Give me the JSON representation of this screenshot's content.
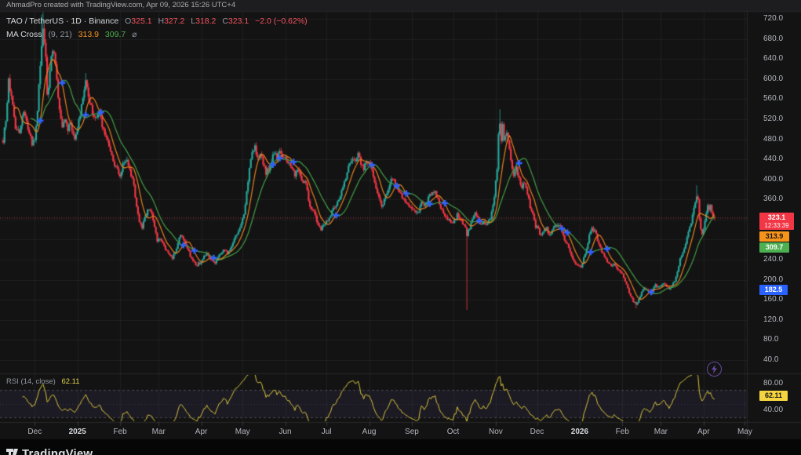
{
  "attribution": {
    "text": "AhmadPro created with TradingView.com, Apr 09, 2026 15:26 UTC+4"
  },
  "legend": {
    "symbol_text": "TAO / TetherUS · 1D · Binance",
    "o_label": "O",
    "o_value": "325.1",
    "h_label": "H",
    "h_value": "327.2",
    "l_label": "L",
    "l_value": "318.2",
    "c_label": "C",
    "c_value": "323.1",
    "change": "−2.0 (−0.62%)",
    "ma_name": "MA Cross",
    "ma_params": "(9, 21)",
    "ma_icon": "⌀"
  },
  "rsi_legend": {
    "title": "RSI (14, close)",
    "value": "62.11"
  },
  "badges": {
    "last_price": "323.1",
    "countdown": "12:33:39",
    "ma_fast": "313.9",
    "ma_slow": "309.7",
    "cross": "182.5",
    "rsi": "62.11"
  },
  "price_axis": {
    "labels": [
      "720.0",
      "680.0",
      "640.0",
      "600.0",
      "560.0",
      "520.0",
      "480.0",
      "440.0",
      "400.0",
      "360.0",
      "320.0",
      "280.0",
      "240.0",
      "200.0",
      "160.0",
      "120.0",
      "80.0",
      "40.0"
    ]
  },
  "rsi_axis": {
    "upper": "80.00",
    "lower": "40.00"
  },
  "time_axis": {
    "months": [
      {
        "label": "Dec",
        "day": 23
      },
      {
        "label": "2025",
        "day": 54,
        "bold": true
      },
      {
        "label": "Feb",
        "day": 85
      },
      {
        "label": "Mar",
        "day": 113
      },
      {
        "label": "Apr",
        "day": 144
      },
      {
        "label": "May",
        "day": 174
      },
      {
        "label": "Jun",
        "day": 205
      },
      {
        "label": "Jul",
        "day": 235
      },
      {
        "label": "Aug",
        "day": 266
      },
      {
        "label": "Sep",
        "day": 297
      },
      {
        "label": "Oct",
        "day": 327
      },
      {
        "label": "Nov",
        "day": 358
      },
      {
        "label": "Dec",
        "day": 388
      },
      {
        "label": "2026",
        "day": 419,
        "bold": true
      },
      {
        "label": "Feb",
        "day": 450
      },
      {
        "label": "Mar",
        "day": 478
      },
      {
        "label": "Apr",
        "day": 509
      },
      {
        "label": "May",
        "day": 539
      }
    ]
  },
  "footer": {
    "logo_text": "TradingView"
  },
  "colors": {
    "up": "#26a69a",
    "down": "#f23645",
    "ma_fast": "#e8821e",
    "ma_slow": "#43a047",
    "marker": "#2f62ff",
    "rsi_line": "#d6c53e",
    "last_badge": "#f23645",
    "ma_fast_badge": "#f7931a",
    "ma_slow_badge": "#4caf50",
    "cross_badge": "#2962ff",
    "rsi_badge": "#f5d53f",
    "grid": "rgba(255,255,255,0.05)",
    "current_price_line": "rgba(247,82,95,0.65)"
  },
  "chart_data": {
    "type": "candlestick",
    "title": "TAO / TetherUS · 1D · Binance",
    "price_axis": {
      "min": 40,
      "max": 720,
      "step": 40
    },
    "rsi_axis": {
      "upper": 80,
      "lower": 40,
      "levels": [
        70,
        50,
        30
      ]
    },
    "last_candle": {
      "open": 325.1,
      "high": 327.2,
      "low": 318.2,
      "close": 323.1,
      "change": -2.0,
      "change_pct": -0.62
    },
    "current_price": 323.1,
    "last_cross_price": 182.5,
    "ma_fast_period": 9,
    "ma_slow_period": 21,
    "ma_fast_value": 313.9,
    "ma_slow_value": 309.7,
    "rsi_period": 14,
    "rsi_value": 62.11,
    "days": 518,
    "close_anchors": [
      [
        0,
        478
      ],
      [
        2,
        522
      ],
      [
        4,
        598
      ],
      [
        6,
        560
      ],
      [
        9,
        506
      ],
      [
        12,
        496
      ],
      [
        15,
        540
      ],
      [
        18,
        504
      ],
      [
        21,
        470
      ],
      [
        23,
        478
      ],
      [
        25,
        540
      ],
      [
        26,
        585
      ],
      [
        28,
        660
      ],
      [
        29,
        700
      ],
      [
        30,
        672
      ],
      [
        31,
        640
      ],
      [
        32,
        565
      ],
      [
        34,
        610
      ],
      [
        35,
        650
      ],
      [
        36,
        660
      ],
      [
        37,
        645
      ],
      [
        38,
        622
      ],
      [
        40,
        562
      ],
      [
        43,
        508
      ],
      [
        45,
        522
      ],
      [
        47,
        498
      ],
      [
        49,
        510
      ],
      [
        52,
        482
      ],
      [
        55,
        515
      ],
      [
        57,
        552
      ],
      [
        59,
        572
      ],
      [
        60,
        590
      ],
      [
        62,
        568
      ],
      [
        64,
        542
      ],
      [
        67,
        518
      ],
      [
        70,
        532
      ],
      [
        73,
        498
      ],
      [
        76,
        472
      ],
      [
        79,
        448
      ],
      [
        82,
        422
      ],
      [
        85,
        410
      ],
      [
        87,
        428
      ],
      [
        90,
        442
      ],
      [
        92,
        422
      ],
      [
        95,
        386
      ],
      [
        97,
        342
      ],
      [
        99,
        312
      ],
      [
        101,
        302
      ],
      [
        103,
        326
      ],
      [
        106,
        344
      ],
      [
        108,
        332
      ],
      [
        110,
        306
      ],
      [
        112,
        275
      ],
      [
        114,
        284
      ],
      [
        117,
        266
      ],
      [
        120,
        254
      ],
      [
        123,
        242
      ],
      [
        126,
        264
      ],
      [
        129,
        290
      ],
      [
        132,
        276
      ],
      [
        135,
        254
      ],
      [
        138,
        236
      ],
      [
        141,
        230
      ],
      [
        143,
        234
      ],
      [
        145,
        242
      ],
      [
        148,
        254
      ],
      [
        151,
        240
      ],
      [
        154,
        230
      ],
      [
        157,
        247
      ],
      [
        160,
        260
      ],
      [
        163,
        254
      ],
      [
        166,
        266
      ],
      [
        169,
        288
      ],
      [
        172,
        304
      ],
      [
        175,
        332
      ],
      [
        177,
        374
      ],
      [
        179,
        422
      ],
      [
        181,
        450
      ],
      [
        183,
        462
      ],
      [
        185,
        446
      ],
      [
        187,
        454
      ],
      [
        189,
        432
      ],
      [
        191,
        414
      ],
      [
        193,
        422
      ],
      [
        195,
        440
      ],
      [
        197,
        452
      ],
      [
        199,
        444
      ],
      [
        201,
        454
      ],
      [
        203,
        450
      ],
      [
        206,
        442
      ],
      [
        209,
        426
      ],
      [
        212,
        410
      ],
      [
        214,
        422
      ],
      [
        217,
        402
      ],
      [
        220,
        390
      ],
      [
        223,
        345
      ],
      [
        226,
        332
      ],
      [
        229,
        312
      ],
      [
        231,
        300
      ],
      [
        233,
        312
      ],
      [
        236,
        320
      ],
      [
        239,
        335
      ],
      [
        242,
        350
      ],
      [
        245,
        368
      ],
      [
        248,
        395
      ],
      [
        251,
        425
      ],
      [
        254,
        445
      ],
      [
        256,
        438
      ],
      [
        258,
        448
      ],
      [
        260,
        432
      ],
      [
        262,
        422
      ],
      [
        264,
        435
      ],
      [
        267,
        428
      ],
      [
        269,
        408
      ],
      [
        271,
        386
      ],
      [
        273,
        364
      ],
      [
        275,
        350
      ],
      [
        277,
        357
      ],
      [
        279,
        372
      ],
      [
        281,
        392
      ],
      [
        283,
        402
      ],
      [
        285,
        396
      ],
      [
        287,
        382
      ],
      [
        289,
        370
      ],
      [
        291,
        360
      ],
      [
        293,
        352
      ],
      [
        296,
        348
      ],
      [
        298,
        342
      ],
      [
        300,
        330
      ],
      [
        302,
        338
      ],
      [
        304,
        352
      ],
      [
        306,
        345
      ],
      [
        308,
        355
      ],
      [
        310,
        368
      ],
      [
        312,
        378
      ],
      [
        314,
        372
      ],
      [
        316,
        360
      ],
      [
        318,
        345
      ],
      [
        320,
        332
      ],
      [
        322,
        325
      ],
      [
        324,
        318
      ],
      [
        326,
        312
      ],
      [
        328,
        318
      ],
      [
        330,
        330
      ],
      [
        332,
        322
      ],
      [
        334,
        314
      ],
      [
        336,
        308
      ],
      [
        337,
        290
      ],
      [
        339,
        304
      ],
      [
        341,
        318
      ],
      [
        343,
        330
      ],
      [
        345,
        322
      ],
      [
        347,
        312
      ],
      [
        349,
        318
      ],
      [
        351,
        308
      ],
      [
        353,
        316
      ],
      [
        355,
        332
      ],
      [
        357,
        365
      ],
      [
        359,
        425
      ],
      [
        360,
        492
      ],
      [
        361,
        512
      ],
      [
        362,
        482
      ],
      [
        363,
        506
      ],
      [
        364,
        472
      ],
      [
        366,
        492
      ],
      [
        367,
        477
      ],
      [
        369,
        442
      ],
      [
        371,
        410
      ],
      [
        373,
        422
      ],
      [
        375,
        400
      ],
      [
        377,
        382
      ],
      [
        379,
        394
      ],
      [
        381,
        372
      ],
      [
        383,
        347
      ],
      [
        385,
        327
      ],
      [
        387,
        307
      ],
      [
        389,
        300
      ],
      [
        391,
        287
      ],
      [
        393,
        294
      ],
      [
        395,
        302
      ],
      [
        397,
        290
      ],
      [
        399,
        297
      ],
      [
        401,
        307
      ],
      [
        404,
        310
      ],
      [
        406,
        297
      ],
      [
        408,
        282
      ],
      [
        410,
        270
      ],
      [
        412,
        257
      ],
      [
        414,
        244
      ],
      [
        416,
        234
      ],
      [
        418,
        230
      ],
      [
        420,
        227
      ],
      [
        422,
        242
      ],
      [
        424,
        264
      ],
      [
        426,
        287
      ],
      [
        428,
        302
      ],
      [
        430,
        297
      ],
      [
        432,
        280
      ],
      [
        434,
        264
      ],
      [
        436,
        250
      ],
      [
        438,
        242
      ],
      [
        440,
        234
      ],
      [
        442,
        227
      ],
      [
        444,
        232
      ],
      [
        446,
        224
      ],
      [
        448,
        220
      ],
      [
        450,
        212
      ],
      [
        452,
        197
      ],
      [
        454,
        182
      ],
      [
        456,
        167
      ],
      [
        458,
        157
      ],
      [
        460,
        152
      ],
      [
        462,
        160
      ],
      [
        464,
        174
      ],
      [
        466,
        184
      ],
      [
        468,
        180
      ],
      [
        470,
        174
      ],
      [
        472,
        182
      ],
      [
        474,
        190
      ],
      [
        476,
        184
      ],
      [
        478,
        187
      ],
      [
        480,
        194
      ],
      [
        482,
        188
      ],
      [
        484,
        182
      ],
      [
        486,
        190
      ],
      [
        488,
        198
      ],
      [
        490,
        217
      ],
      [
        492,
        240
      ],
      [
        494,
        257
      ],
      [
        496,
        274
      ],
      [
        498,
        292
      ],
      [
        500,
        314
      ],
      [
        502,
        347
      ],
      [
        504,
        370
      ],
      [
        505,
        357
      ],
      [
        506,
        324
      ],
      [
        507,
        297
      ],
      [
        508,
        287
      ],
      [
        509,
        304
      ],
      [
        510,
        320
      ],
      [
        511,
        334
      ],
      [
        512,
        347
      ],
      [
        513,
        342
      ],
      [
        514,
        350
      ],
      [
        515,
        337
      ],
      [
        516,
        325
      ],
      [
        517,
        323.1
      ]
    ],
    "wick_overrides": [
      {
        "day": 28,
        "high": 728
      },
      {
        "day": 29,
        "high": 733
      },
      {
        "day": 60,
        "high": 612
      },
      {
        "day": 183,
        "high": 472
      },
      {
        "day": 337,
        "low": 140
      },
      {
        "day": 361,
        "high": 540
      },
      {
        "day": 460,
        "low": 143
      },
      {
        "day": 504,
        "high": 388
      },
      {
        "day": 514,
        "high": 351
      }
    ]
  }
}
